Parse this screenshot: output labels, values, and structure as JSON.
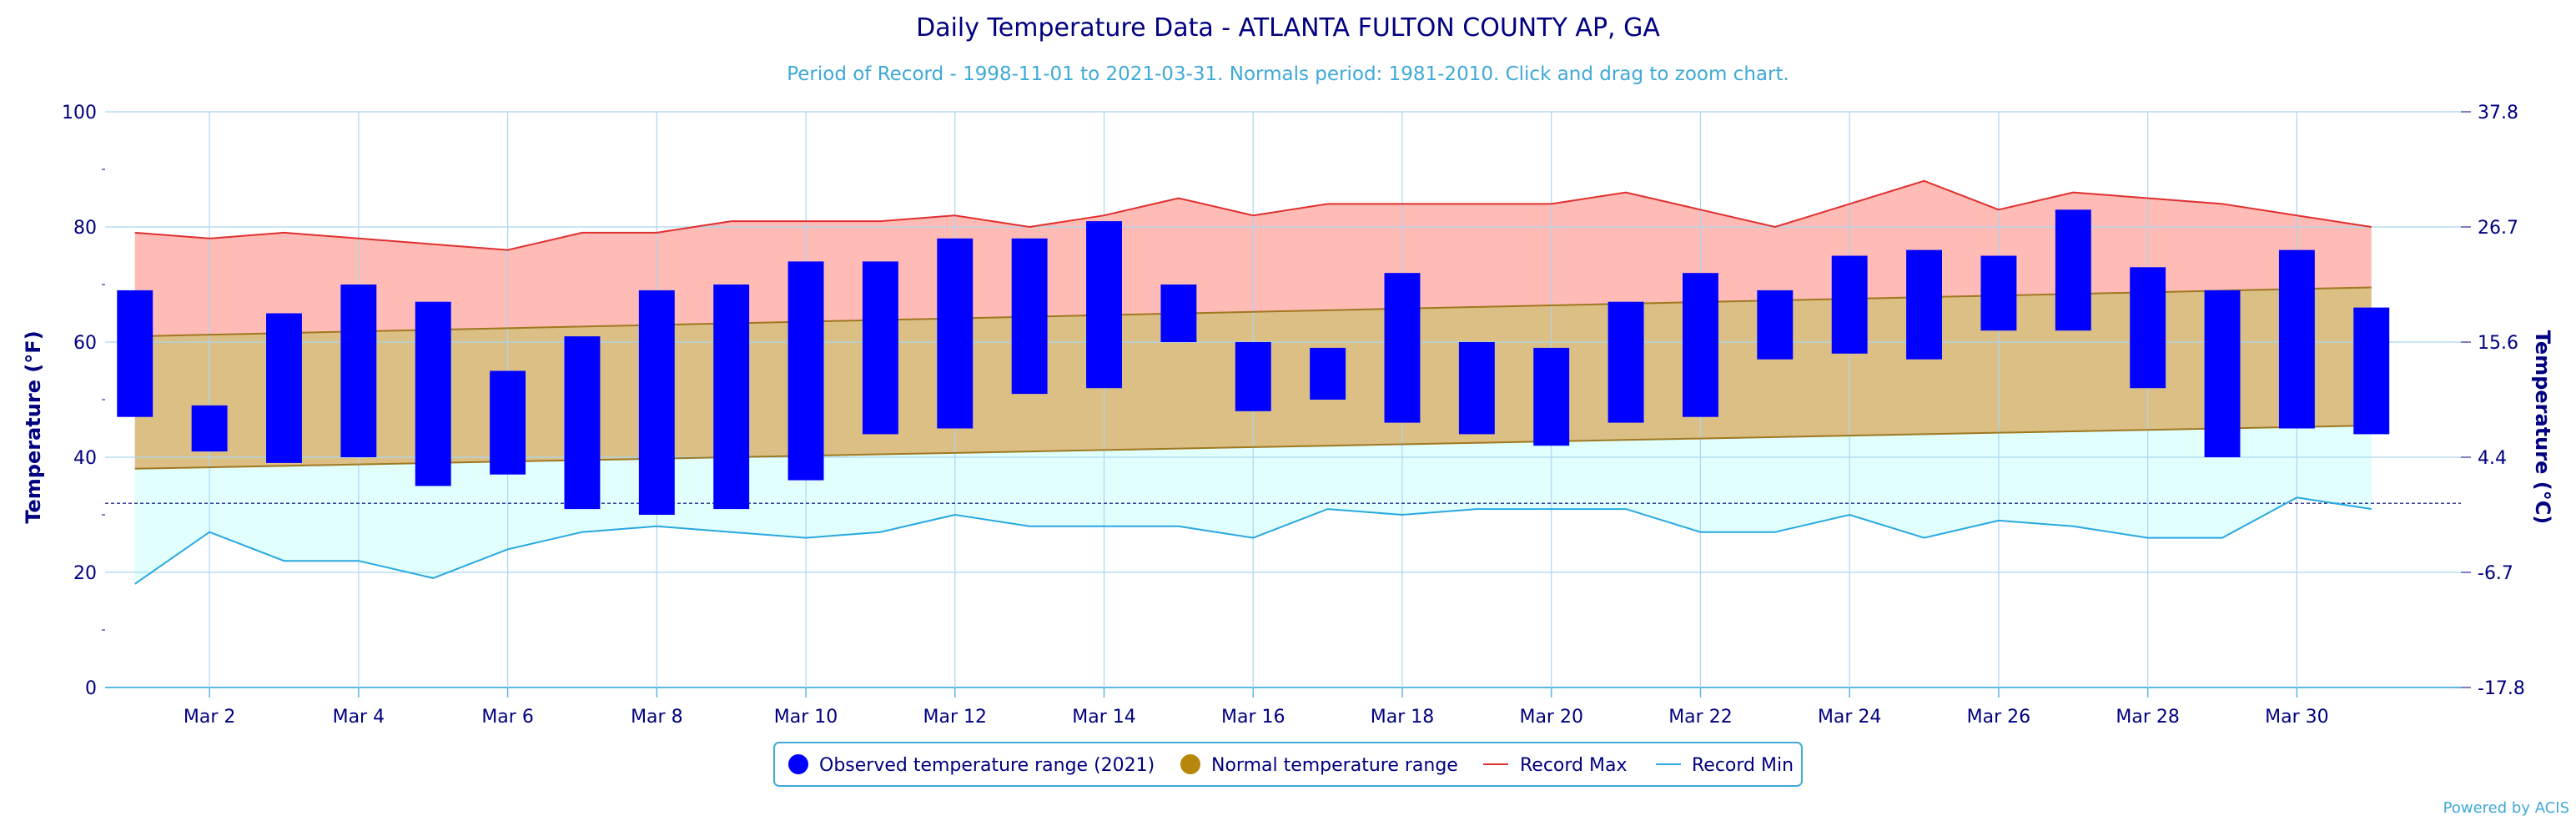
{
  "chart_data": {
    "type": "bar",
    "title": "Daily Temperature Data - ATLANTA FULTON COUNTY AP, GA",
    "subtitle": "Period of Record - 1998-11-01 to 2021-03-31. Normals period: 1981-2010. Click and drag to zoom chart.",
    "ylabel_left": "Temperature (°F)",
    "ylabel_right": "Temperature (°C)",
    "ylim": [
      0,
      100
    ],
    "y_ticks_f": [
      "0",
      "20",
      "40",
      "60",
      "80",
      "100"
    ],
    "y_ticks_c": [
      "-17.8",
      "-6.7",
      "4.4",
      "15.6",
      "26.7",
      "37.8"
    ],
    "x_tick_labels": [
      "Mar 2",
      "Mar 4",
      "Mar 6",
      "Mar 8",
      "Mar 10",
      "Mar 12",
      "Mar 14",
      "Mar 16",
      "Mar 18",
      "Mar 20",
      "Mar 22",
      "Mar 24",
      "Mar 26",
      "Mar 28",
      "Mar 30"
    ],
    "days": [
      1,
      2,
      3,
      4,
      5,
      6,
      7,
      8,
      9,
      10,
      11,
      12,
      13,
      14,
      15,
      16,
      17,
      18,
      19,
      20,
      21,
      22,
      23,
      24,
      25,
      26,
      27,
      28,
      29,
      30,
      31
    ],
    "freezing_line": 32,
    "grid": true,
    "legend_position": "bottom-center",
    "series": [
      {
        "name": "Observed temperature range (2021)",
        "color": "#0000ff",
        "high": [
          69,
          49,
          65,
          70,
          67,
          55,
          61,
          69,
          70,
          74,
          74,
          78,
          78,
          81,
          70,
          60,
          59,
          72,
          60,
          59,
          67,
          72,
          69,
          75,
          76,
          75,
          83,
          73,
          69,
          76,
          66
        ],
        "low": [
          47,
          41,
          39,
          40,
          35,
          37,
          31,
          30,
          31,
          36,
          44,
          45,
          51,
          52,
          60,
          48,
          50,
          46,
          44,
          42,
          46,
          47,
          57,
          58,
          57,
          62,
          62,
          52,
          40,
          45,
          44
        ]
      },
      {
        "name": "Normal temperature range",
        "color": "#b8860b",
        "high_start": 61,
        "high_end": 69.5,
        "low_start": 38,
        "low_end": 45.5
      },
      {
        "name": "Record Max",
        "color": "#e03030",
        "values": [
          79,
          78,
          79,
          78,
          77,
          76,
          79,
          79,
          81,
          81,
          81,
          82,
          80,
          82,
          85,
          82,
          84,
          84,
          84,
          84,
          86,
          83,
          80,
          84,
          88,
          83,
          86,
          85,
          84,
          82,
          80
        ]
      },
      {
        "name": "Record Min",
        "color": "#29a8e0",
        "values": [
          18,
          27,
          22,
          22,
          19,
          24,
          27,
          28,
          27,
          26,
          27,
          30,
          28,
          28,
          28,
          26,
          31,
          30,
          31,
          31,
          31,
          27,
          27,
          30,
          26,
          29,
          28,
          26,
          26,
          33,
          31
        ]
      }
    ],
    "credit": "Powered by ACIS"
  }
}
